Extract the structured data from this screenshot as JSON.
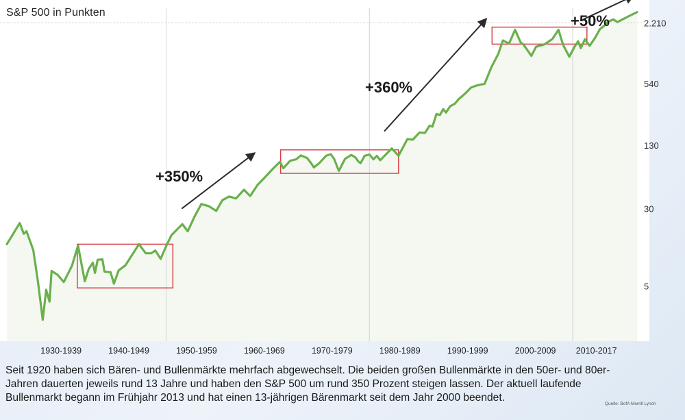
{
  "chart_data": {
    "type": "line",
    "title": "S&P 500 in Punkten",
    "y_scale": "log",
    "ylim": [
      1.4,
      3000
    ],
    "y_ticks": [
      5,
      30,
      130,
      540,
      2210
    ],
    "y_tick_labels": [
      "5",
      "30",
      "130",
      "540",
      "2.210"
    ],
    "x_range": [
      1926.5,
      2019.8
    ],
    "x_ticks": [
      {
        "label": "1930-1939",
        "center": 1934.5
      },
      {
        "label": "1940-1949",
        "center": 1944.5
      },
      {
        "label": "1950-1959",
        "center": 1954.5
      },
      {
        "label": "1960-1969",
        "center": 1964.5
      },
      {
        "label": "1970-1979",
        "center": 1974.5
      },
      {
        "label": "1980-1989",
        "center": 1984.5
      },
      {
        "label": "1990-1999",
        "center": 1994.5
      },
      {
        "label": "2000-2009",
        "center": 2004.5
      },
      {
        "label": "2010-2017",
        "center": 2013.5
      }
    ],
    "grid": {
      "vertical_at": [
        1950,
        1980,
        2010
      ],
      "horizontal_at": [
        2210
      ]
    },
    "series": [
      {
        "color": "#6ab04c",
        "points": [
          [
            1926.5,
            13.2
          ],
          [
            1928.4,
            21.5
          ],
          [
            1929.0,
            16.8
          ],
          [
            1929.4,
            17.8
          ],
          [
            1930.4,
            11.5
          ],
          [
            1931.1,
            5.5
          ],
          [
            1931.8,
            2.3
          ],
          [
            1932.3,
            4.6
          ],
          [
            1932.8,
            3.5
          ],
          [
            1933.1,
            7.1
          ],
          [
            1934.0,
            6.5
          ],
          [
            1934.9,
            5.5
          ],
          [
            1936.1,
            8.0
          ],
          [
            1937.0,
            12.8
          ],
          [
            1938.0,
            5.6
          ],
          [
            1938.6,
            7.5
          ],
          [
            1939.2,
            8.6
          ],
          [
            1939.5,
            6.8
          ],
          [
            1939.9,
            9.2
          ],
          [
            1940.6,
            9.3
          ],
          [
            1940.9,
            7.0
          ],
          [
            1941.8,
            6.9
          ],
          [
            1942.3,
            5.3
          ],
          [
            1943.0,
            7.2
          ],
          [
            1944.0,
            8.1
          ],
          [
            1946.0,
            13.2
          ],
          [
            1947.0,
            10.7
          ],
          [
            1947.8,
            10.7
          ],
          [
            1948.4,
            11.4
          ],
          [
            1949.2,
            9.4
          ],
          [
            1950.0,
            12.6
          ],
          [
            1950.8,
            16.3
          ],
          [
            1951.6,
            18.5
          ],
          [
            1952.4,
            21.0
          ],
          [
            1953.2,
            17.8
          ],
          [
            1954.2,
            25.0
          ],
          [
            1955.2,
            33.4
          ],
          [
            1956.3,
            31.8
          ],
          [
            1957.4,
            28.5
          ],
          [
            1958.3,
            36.5
          ],
          [
            1959.3,
            39.8
          ],
          [
            1960.3,
            38.0
          ],
          [
            1961.5,
            46.5
          ],
          [
            1962.4,
            40.2
          ],
          [
            1963.5,
            52.0
          ],
          [
            1964.6,
            62.2
          ],
          [
            1965.8,
            76.0
          ],
          [
            1966.8,
            88.5
          ],
          [
            1967.3,
            76.5
          ],
          [
            1968.3,
            90.8
          ],
          [
            1969.2,
            94.0
          ],
          [
            1969.9,
            103.0
          ],
          [
            1970.8,
            97.0
          ],
          [
            1971.4,
            86.0
          ],
          [
            1971.8,
            78.0
          ],
          [
            1972.6,
            86.0
          ],
          [
            1973.6,
            102.0
          ],
          [
            1974.3,
            106.0
          ],
          [
            1974.8,
            95.0
          ],
          [
            1975.5,
            72.0
          ],
          [
            1976.4,
            95.0
          ],
          [
            1977.3,
            104.0
          ],
          [
            1977.9,
            99.0
          ],
          [
            1978.4,
            89.0
          ],
          [
            1978.7,
            86.0
          ],
          [
            1979.3,
            102.0
          ],
          [
            1980.0,
            105.0
          ],
          [
            1980.6,
            94.0
          ],
          [
            1981.1,
            102.0
          ],
          [
            1981.6,
            92.0
          ],
          [
            1982.3,
            103.0
          ],
          [
            1983.3,
            121.0
          ],
          [
            1984.3,
            102.0
          ],
          [
            1985.6,
            150.0
          ],
          [
            1986.4,
            148.0
          ],
          [
            1987.4,
            175.0
          ],
          [
            1988.2,
            173.0
          ],
          [
            1988.9,
            205.0
          ],
          [
            1989.3,
            200.0
          ],
          [
            1989.9,
            268.0
          ],
          [
            1990.4,
            262.0
          ],
          [
            1990.9,
            300.0
          ],
          [
            1991.3,
            277.0
          ],
          [
            1991.9,
            320.0
          ],
          [
            1992.6,
            340.0
          ],
          [
            1993.2,
            380.0
          ],
          [
            1993.6,
            400.0
          ],
          [
            1994.2,
            435.0
          ],
          [
            1995.0,
            495.0
          ],
          [
            1995.7,
            515.0
          ],
          [
            1996.4,
            530.0
          ],
          [
            1997.0,
            538.0
          ],
          [
            1998.0,
            790.0
          ],
          [
            1999.0,
            1070.0
          ],
          [
            1999.7,
            1470.0
          ],
          [
            2000.6,
            1370.0
          ],
          [
            2001.5,
            1880.0
          ],
          [
            2002.3,
            1410.0
          ],
          [
            2002.8,
            1320.0
          ],
          [
            2003.9,
            1030.0
          ],
          [
            2004.6,
            1270.0
          ],
          [
            2005.8,
            1340.0
          ],
          [
            2007.0,
            1520.0
          ],
          [
            2007.9,
            1880.0
          ],
          [
            2008.6,
            1320.0
          ],
          [
            2009.5,
            1010.0
          ],
          [
            2010.3,
            1280.0
          ],
          [
            2010.8,
            1440.0
          ],
          [
            2011.2,
            1230.0
          ],
          [
            2011.8,
            1510.0
          ],
          [
            2012.5,
            1300.0
          ],
          [
            2013.3,
            1560.0
          ],
          [
            2014.0,
            1900.0
          ],
          [
            2014.6,
            2050.0
          ],
          [
            2015.2,
            2260.0
          ],
          [
            2016.0,
            2390.0
          ],
          [
            2016.6,
            2250.0
          ],
          [
            2017.4,
            2400.0
          ],
          [
            2018.2,
            2560.0
          ],
          [
            2019.5,
            2830.0
          ]
        ]
      }
    ],
    "boxes": [
      {
        "x0": 1936.9,
        "x1": 1951.0,
        "y_low": 4.8,
        "y_high": 13.2
      },
      {
        "x0": 1966.9,
        "x1": 1984.3,
        "y_low": 68.0,
        "y_high": 117.0
      },
      {
        "x0": 1998.1,
        "x1": 2012.1,
        "y_low": 1350.0,
        "y_high": 2000.0
      }
    ],
    "annotations": [
      {
        "text": "+350%",
        "arrow_from": [
          1952.3,
          30.0
        ],
        "arrow_to": [
          1963.0,
          108.0
        ]
      },
      {
        "text": "+360%",
        "arrow_from": [
          1982.2,
          180.0
        ],
        "arrow_to": [
          1997.2,
          2400.0
        ]
      },
      {
        "text": "+50%",
        "arrow_from": [
          2011.6,
          2400.0
        ],
        "arrow_to": [
          2018.9,
          4100.0
        ]
      }
    ]
  },
  "caption": "Seit 1920 haben sich Bären- und Bullenmärkte mehrfach abgewechselt. Die beiden großen Bullenmärkte in den 50er- und 80er-Jahren dauerten jeweils rund 13 Jahre und haben den S&P 500 um rund 350 Prozent steigen lassen. Der aktuell laufende Bullenmarkt begann im Frühjahr 2013 und hat einen 13-jährigen Bärenmarkt seit dem Jahr 2000 beendet.",
  "source": "Quelle: BofA Merrill Lynch",
  "colors": {
    "line": "#6ab04c",
    "area": "#f4f8f1",
    "box": "#d9404a",
    "grid": "#d3d3d3",
    "arrow": "#2b2b2b"
  }
}
